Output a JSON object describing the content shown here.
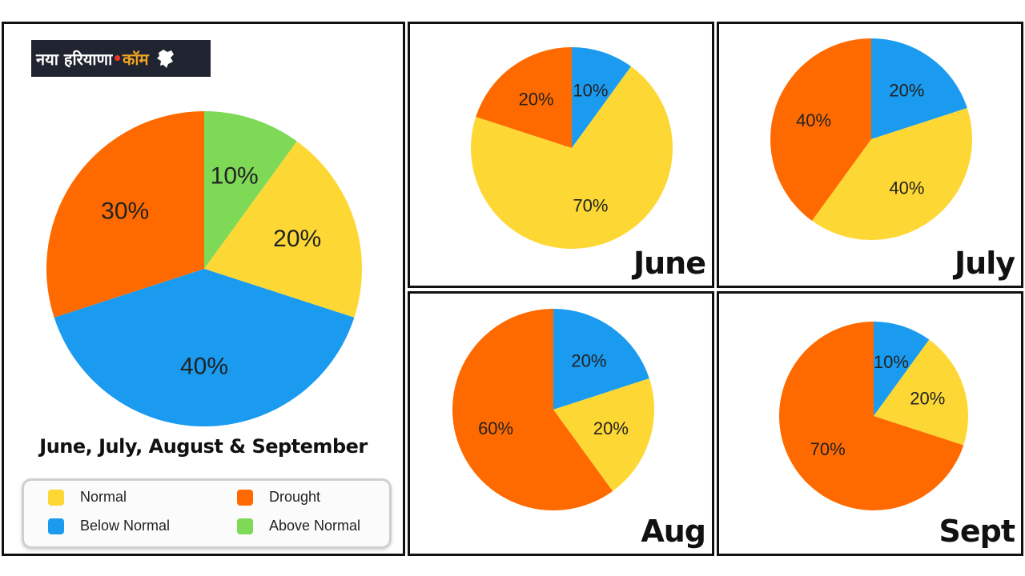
{
  "logo": {
    "text_a": "नया हरियाणा",
    "text_dot": "•",
    "text_b": "कॉम",
    "icon": "haryana-map-icon"
  },
  "colors": {
    "normal": "#FDD835",
    "drought": "#FF6A00",
    "below_normal": "#1A9BF0",
    "above_normal": "#7ED957"
  },
  "legend": {
    "normal": "Normal",
    "drought": "Drought",
    "below_normal": "Below Normal",
    "above_normal": "Above Normal"
  },
  "chart_data": [
    {
      "type": "pie",
      "title": "June, July, August & September",
      "legend_position": "bottom",
      "slices": [
        {
          "category": "Above Normal",
          "value": 10,
          "label": "10%"
        },
        {
          "category": "Normal",
          "value": 20,
          "label": "20%"
        },
        {
          "category": "Below Normal",
          "value": 40,
          "label": "40%"
        },
        {
          "category": "Drought",
          "value": 30,
          "label": "30%"
        }
      ]
    },
    {
      "type": "pie",
      "title": "June",
      "slices": [
        {
          "category": "Below Normal",
          "value": 10,
          "label": "10%"
        },
        {
          "category": "Normal",
          "value": 70,
          "label": "70%"
        },
        {
          "category": "Drought",
          "value": 20,
          "label": "20%"
        }
      ]
    },
    {
      "type": "pie",
      "title": "July",
      "slices": [
        {
          "category": "Below Normal",
          "value": 20,
          "label": "20%"
        },
        {
          "category": "Normal",
          "value": 40,
          "label": "40%"
        },
        {
          "category": "Drought",
          "value": 40,
          "label": "40%"
        }
      ]
    },
    {
      "type": "pie",
      "title": "Aug",
      "slices": [
        {
          "category": "Below Normal",
          "value": 20,
          "label": "20%"
        },
        {
          "category": "Normal",
          "value": 20,
          "label": "20%"
        },
        {
          "category": "Drought",
          "value": 60,
          "label": "60%"
        }
      ]
    },
    {
      "type": "pie",
      "title": "Sept",
      "slices": [
        {
          "category": "Below Normal",
          "value": 10,
          "label": "10%"
        },
        {
          "category": "Normal",
          "value": 20,
          "label": "20%"
        },
        {
          "category": "Drought",
          "value": 70,
          "label": "70%"
        }
      ]
    }
  ]
}
